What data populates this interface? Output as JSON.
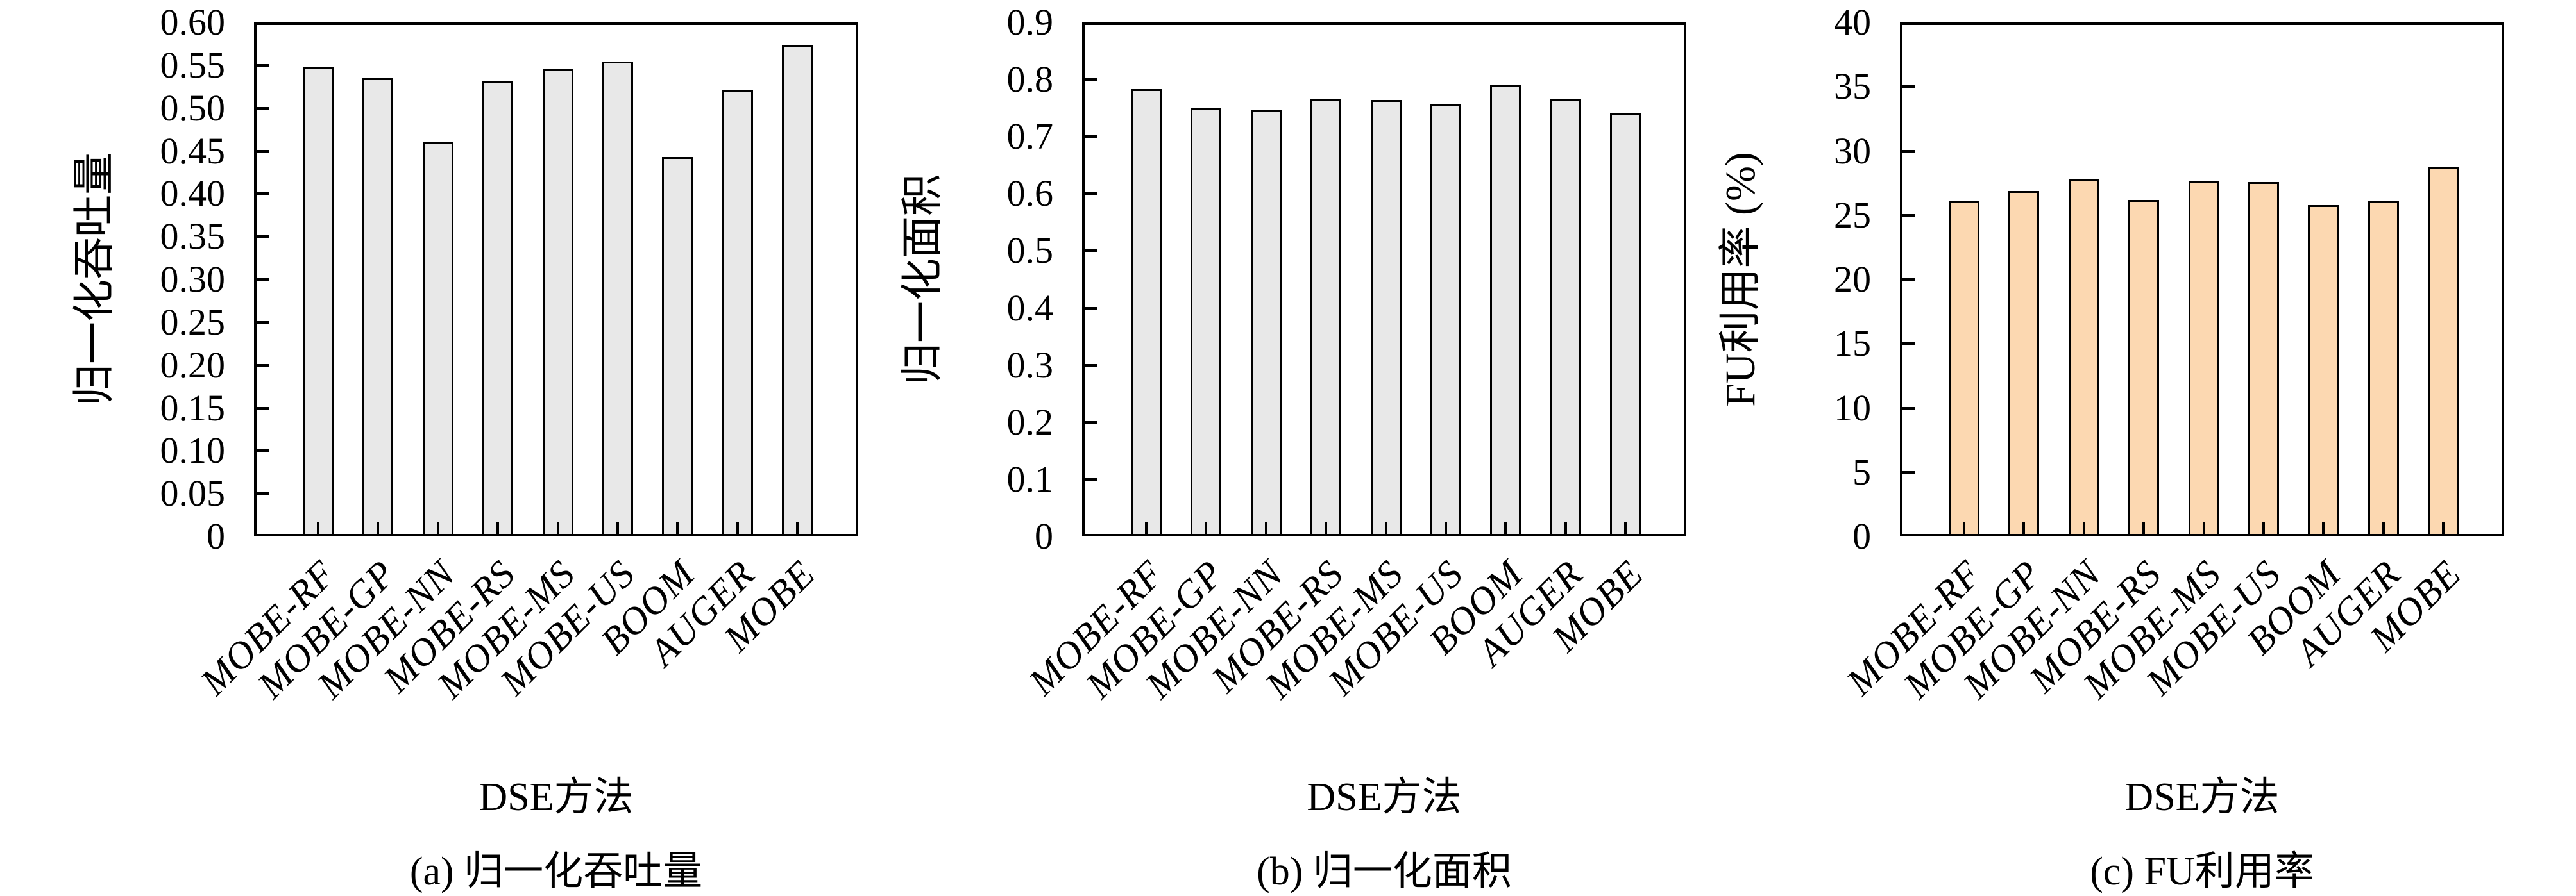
{
  "figure": {
    "background": "#ffffff",
    "axis_color": "#000000",
    "text_color": "#000000"
  },
  "chart_data": [
    {
      "type": "bar",
      "title": "(a) 归一化吞吐量",
      "xlabel": "DSE方法",
      "ylabel": "归一化吞吐量",
      "categories": [
        "MOBE-RF",
        "MOBE-GP",
        "MOBE-NN",
        "MOBE-RS",
        "MOBE-MS",
        "MOBE-US",
        "BOOM",
        "AUGER",
        "MOBE"
      ],
      "values": [
        0.548,
        0.535,
        0.461,
        0.531,
        0.546,
        0.554,
        0.443,
        0.521,
        0.574
      ],
      "ylim": [
        0,
        0.6
      ],
      "ytick_values": [
        0,
        0.05,
        0.1,
        0.15,
        0.2,
        0.25,
        0.3,
        0.35,
        0.4,
        0.45,
        0.5,
        0.55,
        0.6
      ],
      "ytick_labels": [
        "0",
        "0.05",
        "0.10",
        "0.15",
        "0.20",
        "0.25",
        "0.30",
        "0.35",
        "0.40",
        "0.45",
        "0.50",
        "0.55",
        "0.60"
      ],
      "bar_fill": "#e8e8e8",
      "bar_border": "#000000",
      "grid": false,
      "legend": null
    },
    {
      "type": "bar",
      "title": "(b) 归一化面积",
      "xlabel": "DSE方法",
      "ylabel": "归一化面积",
      "categories": [
        "MOBE-RF",
        "MOBE-GP",
        "MOBE-NN",
        "MOBE-RS",
        "MOBE-MS",
        "MOBE-US",
        "BOOM",
        "AUGER",
        "MOBE"
      ],
      "values": [
        0.783,
        0.751,
        0.746,
        0.767,
        0.764,
        0.758,
        0.79,
        0.766,
        0.742
      ],
      "ylim": [
        0,
        0.9
      ],
      "ytick_values": [
        0,
        0.1,
        0.2,
        0.3,
        0.4,
        0.5,
        0.6,
        0.7,
        0.8,
        0.9
      ],
      "ytick_labels": [
        "0",
        "0.1",
        "0.2",
        "0.3",
        "0.4",
        "0.5",
        "0.6",
        "0.7",
        "0.8",
        "0.9"
      ],
      "bar_fill": "#e8e8e8",
      "bar_border": "#000000",
      "grid": false,
      "legend": null
    },
    {
      "type": "bar",
      "title": "(c) FU利用率",
      "xlabel": "DSE方法",
      "ylabel": "FU利用率 (%)",
      "categories": [
        "MOBE-RF",
        "MOBE-GP",
        "MOBE-NN",
        "MOBE-RS",
        "MOBE-MS",
        "MOBE-US",
        "BOOM",
        "AUGER",
        "MOBE"
      ],
      "values": [
        26.1,
        26.9,
        27.8,
        26.2,
        27.7,
        27.6,
        25.8,
        26.1,
        28.8
      ],
      "ylim": [
        0,
        40
      ],
      "ytick_values": [
        0,
        5,
        10,
        15,
        20,
        25,
        30,
        35,
        40
      ],
      "ytick_labels": [
        "0",
        "5",
        "10",
        "15",
        "20",
        "25",
        "30",
        "35",
        "40"
      ],
      "bar_fill": "#fcd8b1",
      "bar_border": "#000000",
      "grid": false,
      "legend": null
    }
  ]
}
